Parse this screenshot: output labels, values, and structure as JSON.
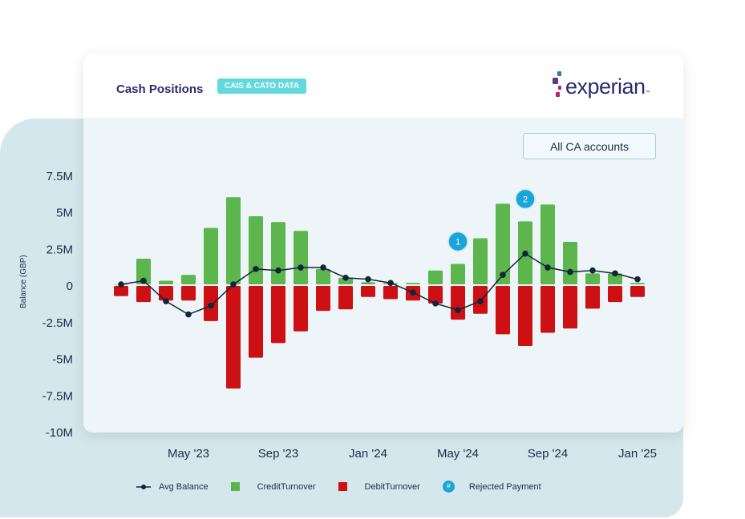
{
  "header": {
    "title": "Cash Positions",
    "badge": "CAIS & CATO DATA",
    "logo": "experian"
  },
  "filter": {
    "selected": "All CA accounts"
  },
  "colors": {
    "credit": "#5cb54d",
    "debit": "#cd1014",
    "avg": "#13243d",
    "rejected": "#1aa5d8",
    "brand_purple": "#5b3a8a",
    "brand_pink": "#b3246e"
  },
  "legend": {
    "avg": "Avg Balance",
    "credit": "CreditTurnover",
    "debit": "DebitTurnover",
    "rejected_icon": "#",
    "rejected": "Rejected Payment"
  },
  "chart_data": {
    "type": "bar",
    "ylabel": "Balance (GBP)",
    "ylim": [
      -10,
      7.5
    ],
    "yunit": "M",
    "yticks": [
      "7.5M",
      "5M",
      "2.5M",
      "0",
      "-2.5M",
      "-5M",
      "-7.5M",
      "-10M"
    ],
    "ytick_values": [
      7.5,
      5,
      2.5,
      0,
      -2.5,
      -5,
      -7.5,
      -10
    ],
    "categories": [
      "Feb '23",
      "Mar '23",
      "Apr '23",
      "May '23",
      "Jun '23",
      "Jul '23",
      "Aug '23",
      "Sep '23",
      "Oct '23",
      "Nov '23",
      "Dec '23",
      "Jan '24",
      "Feb '24",
      "Mar '24",
      "Apr '24",
      "May '24",
      "Jun '24",
      "Jul '24",
      "Aug '24",
      "Sep '24",
      "Oct '24",
      "Nov '24",
      "Dec '24",
      "Jan '25"
    ],
    "xticks": [
      {
        "label": "May '23",
        "category": "May '23"
      },
      {
        "label": "Sep '23",
        "category": "Sep '23"
      },
      {
        "label": "Jan '24",
        "category": "Jan '24"
      },
      {
        "label": "May '24",
        "category": "May '24"
      },
      {
        "label": "Sep '24",
        "category": "Sep '24"
      },
      {
        "label": "Jan '25",
        "category": "Jan '25"
      }
    ],
    "series": [
      {
        "name": "CreditTurnover",
        "type": "bar",
        "values": [
          0.05,
          1.8,
          0.3,
          0.7,
          3.9,
          6.0,
          4.7,
          4.3,
          3.7,
          1.1,
          0.5,
          0.2,
          0.15,
          0.15,
          1.0,
          1.45,
          3.2,
          5.55,
          4.35,
          5.5,
          2.95,
          0.8,
          0.8,
          0.15
        ]
      },
      {
        "name": "DebitTurnover",
        "type": "bar",
        "values": [
          -0.7,
          -1.1,
          -1.0,
          -1.0,
          -2.4,
          -7.0,
          -4.9,
          -3.9,
          -3.1,
          -1.7,
          -1.6,
          -0.75,
          -0.9,
          -1.0,
          -1.2,
          -2.3,
          -1.9,
          -3.3,
          -4.1,
          -3.2,
          -2.9,
          -1.55,
          -1.1,
          -0.75
        ]
      },
      {
        "name": "Avg Balance",
        "type": "line",
        "values": [
          0.05,
          0.3,
          -1.1,
          -2.0,
          -1.4,
          0.05,
          1.1,
          1.0,
          1.2,
          1.2,
          0.5,
          0.4,
          0.15,
          -0.5,
          -1.25,
          -1.7,
          -1.1,
          0.7,
          2.15,
          1.2,
          0.9,
          1.0,
          0.8,
          0.4
        ]
      }
    ],
    "annotations": [
      {
        "label": "1",
        "category": "May '24",
        "type": "Rejected Payment"
      },
      {
        "label": "2",
        "category": "Aug '24",
        "type": "Rejected Payment"
      }
    ],
    "legend_position": "bottom",
    "grid": false
  }
}
